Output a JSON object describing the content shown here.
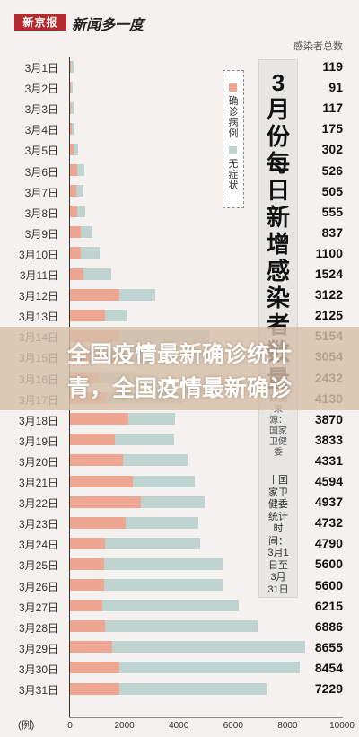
{
  "header": {
    "logo": "新京报",
    "column": "新闻多一度"
  },
  "totals_header": "感染者总数",
  "legend": {
    "confirmed": "确诊病例",
    "asymptomatic": "无症状"
  },
  "title_panel": {
    "title": "3月份每日新增感染者数量",
    "source_hint": "数据来源：国家卫健委",
    "note": "丨国家卫健委 统计时间：3月1日至3月31日"
  },
  "overlay": {
    "line1": "全国疫情最新确诊统计",
    "line2": "青，全国疫情最新确诊"
  },
  "colors": {
    "confirmed": "#eea592",
    "asymptomatic": "#bfd3d1",
    "brand": "#b42a2f"
  },
  "chart_data": {
    "type": "bar",
    "stacked": true,
    "orientation": "horizontal",
    "x_unit": "(例)",
    "xlim": [
      0,
      10000
    ],
    "xticks": [
      "0",
      "2000",
      "4000",
      "6000",
      "8000",
      "10000"
    ],
    "categories": [
      "3月1日",
      "3月2日",
      "3月3日",
      "3月4日",
      "3月5日",
      "3月6日",
      "3月7日",
      "3月8日",
      "3月9日",
      "3月10日",
      "3月11日",
      "3月12日",
      "3月13日",
      "3月14日",
      "3月15日",
      "3月16日",
      "3月17日",
      "3月18日",
      "3月19日",
      "3月20日",
      "3月21日",
      "3月22日",
      "3月23日",
      "3月24日",
      "3月25日",
      "3月26日",
      "3月27日",
      "3月28日",
      "3月29日",
      "3月30日",
      "3月31日"
    ],
    "series": [
      {
        "name": "确诊病例",
        "values": [
          33,
          20,
          40,
          60,
          120,
          250,
          240,
          250,
          380,
          400,
          500,
          1800,
          1300,
          1800,
          1800,
          1100,
          1350,
          2150,
          1650,
          1950,
          2300,
          2600,
          2050,
          1300,
          1250,
          1250,
          1200,
          1280,
          1560,
          1800,
          1800
        ]
      },
      {
        "name": "无症状",
        "values": [
          86,
          71,
          77,
          115,
          182,
          276,
          265,
          305,
          457,
          700,
          1024,
          1322,
          825,
          3354,
          1254,
          1332,
          2780,
          1720,
          2183,
          2381,
          2294,
          2337,
          2682,
          3490,
          4350,
          4350,
          5015,
          5606,
          7095,
          6654,
          5429
        ]
      }
    ],
    "totals": [
      "119",
      "91",
      "117",
      "175",
      "302",
      "526",
      "505",
      "555",
      "837",
      "1100",
      "1524",
      "3122",
      "2125",
      "5154",
      "3054",
      "2432",
      "4130",
      "3870",
      "3833",
      "4331",
      "4594",
      "4937",
      "4732",
      "4790",
      "5600",
      "5600",
      "6215",
      "6886",
      "8655",
      "8454",
      "7229"
    ]
  }
}
